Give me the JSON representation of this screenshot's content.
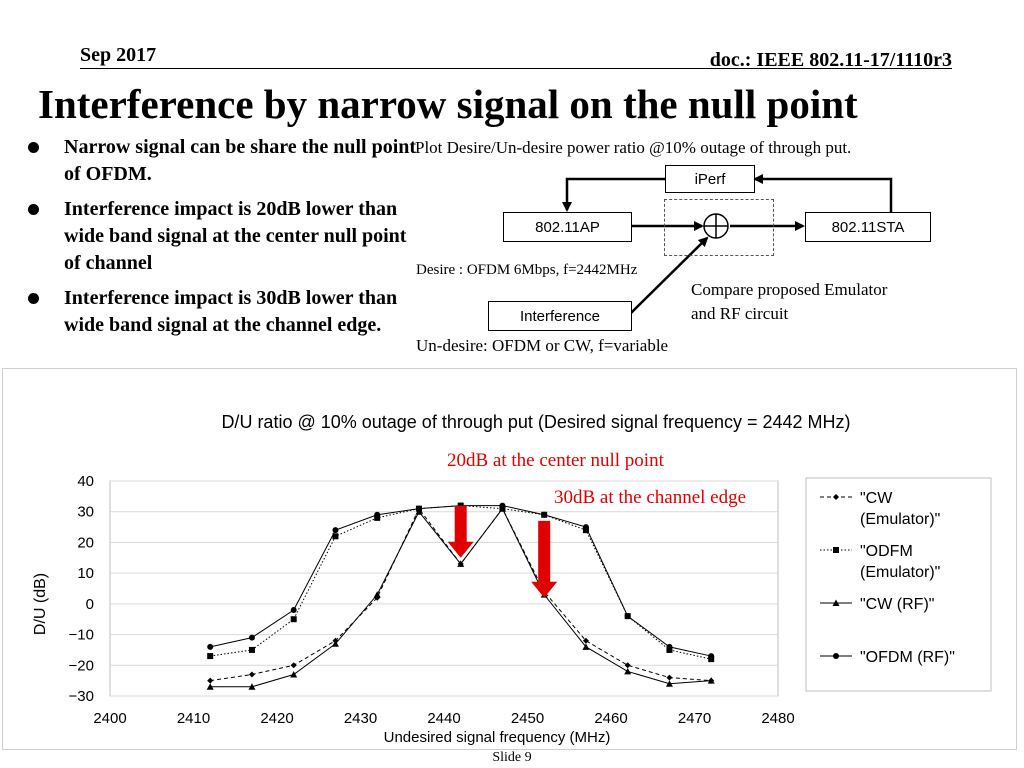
{
  "header": {
    "date": "Sep 2017",
    "doc": "doc.: IEEE 802.11-17/1110r3"
  },
  "title": "Interference by narrow signal on the null point",
  "bullets": [
    "Narrow signal can be share the null point of OFDM.",
    "Interference impact is 20dB lower than wide band signal at the center null point of channel",
    "Interference impact is 30dB lower than wide band signal at the channel edge."
  ],
  "diagram": {
    "plot_desc": "Plot Desire/Un-desire power ratio @10% outage of through put.",
    "iperf": "iPerf",
    "ap": "802.11AP",
    "sta": "802.11STA",
    "interference": "Interference",
    "desire": "Desire : OFDM 6Mbps, f=2442MHz",
    "compare_line1": "Compare proposed Emulator",
    "compare_line2": "and RF circuit",
    "undesire": "Un-desire: OFDM or CW,  f=variable"
  },
  "chart_data": {
    "type": "line",
    "title": "D/U ratio @ 10% outage of through put (Desired signal frequency = 2442 MHz)",
    "xlabel": "Undesired signal frequency (MHz)",
    "ylabel": "D/U (dB)",
    "xlim": [
      2400,
      2480
    ],
    "ylim": [
      -30,
      40
    ],
    "xticks": [
      2400,
      2410,
      2420,
      2430,
      2440,
      2450,
      2460,
      2470,
      2480
    ],
    "yticks": [
      40,
      30,
      20,
      10,
      0,
      -10,
      -20,
      -30
    ],
    "grid": true,
    "legend_position": "right",
    "x": [
      2412,
      2417,
      2422,
      2427,
      2432,
      2437,
      2442,
      2447,
      2452,
      2457,
      2462,
      2467,
      2472
    ],
    "series": [
      {
        "name": "\"CW (Emulator)\"",
        "marker": "diamond",
        "dash": "4,3",
        "values": [
          -25,
          -23,
          -20,
          -12,
          2,
          31,
          13,
          31,
          4,
          -12,
          -20,
          -24,
          -25
        ]
      },
      {
        "name": "\"ODFM (Emulator)\"",
        "marker": "square",
        "dash": "1.5,2",
        "values": [
          -17,
          -15,
          -5,
          22,
          28,
          31,
          32,
          31,
          29,
          24,
          -4,
          -15,
          -18
        ]
      },
      {
        "name": "\"CW (RF)\"",
        "marker": "triangle",
        "dash": "",
        "values": [
          -27,
          -27,
          -23,
          -13,
          3,
          30,
          13,
          31,
          3,
          -14,
          -22,
          -26,
          -25
        ]
      },
      {
        "name": "\"OFDM (RF)\"",
        "marker": "circle",
        "dash": "",
        "values": [
          -14,
          -11,
          -2,
          24,
          29,
          31,
          32,
          32,
          29,
          25,
          -4,
          -14,
          -17
        ]
      }
    ],
    "annotations": [
      {
        "text": "20dB at the center null point",
        "color": "#e00000"
      },
      {
        "text": "30dB at the channel edge",
        "color": "#e00000"
      }
    ],
    "arrows": [
      {
        "x": 2442,
        "from_y": 32,
        "to_y": 15
      },
      {
        "x": 2452,
        "from_y": 27,
        "to_y": 2
      }
    ]
  },
  "footer": {
    "slide": "Slide 9"
  }
}
